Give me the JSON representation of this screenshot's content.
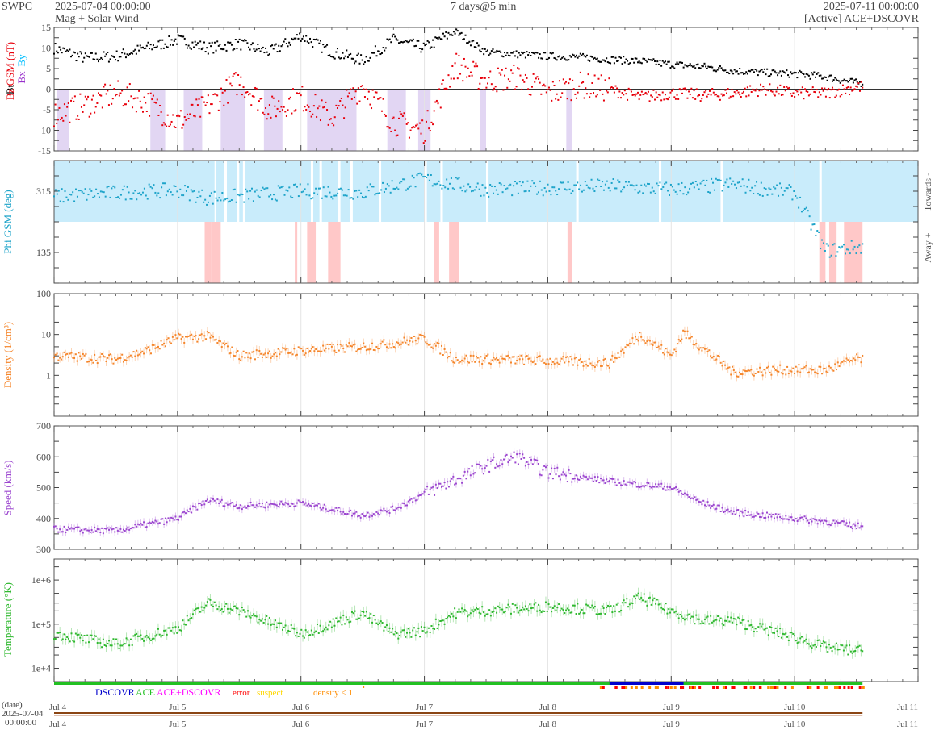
{
  "header": {
    "agency": "SWPC",
    "start_time": "2025-07-04 00:00:00",
    "subtitle": "Mag + Solar Wind",
    "span": "7 days@5 min",
    "end_time": "2025-07-11 00:00:00",
    "source": "[Active] ACE+DSCOVR"
  },
  "colors": {
    "bt": "#000000",
    "bz": "#e8000b",
    "bx": "#9932cc",
    "by": "#00bfff",
    "phi": "#1ca3c9",
    "towards_fill": "#c9ecfb",
    "away_fill": "#ffc8c8",
    "bz_fill": "#e2d6f3",
    "density": "#f5852a",
    "speed": "#9b45cf",
    "temperature": "#2eb82e",
    "dscovr": "#0000cd",
    "ace": "#22c022",
    "ace_dscovr": "#ff00ff",
    "error": "#ff0000",
    "suspect": "#ffd700",
    "density_lt1": "#ff8c00"
  },
  "side_labels": {
    "towards": "Towards -",
    "away": "Away +"
  },
  "legend": {
    "dscovr": "DSCOVR",
    "ace": "ACE",
    "ace_dscovr": "ACE+DSCOVR",
    "error": "error",
    "suspect": "suspect",
    "density_lt1": "density < 1"
  },
  "date_axis": {
    "label": "(date)",
    "date": "2025-07-04",
    "time": "00:00:00"
  },
  "chart_data": [
    {
      "type": "scatter",
      "panel": "mag",
      "ylabel_parts": [
        "Bt",
        "Bz GSM (nT)",
        "Bx",
        "By"
      ],
      "ylim": [
        -15,
        15
      ],
      "yticks": [
        -15,
        -10,
        -5,
        0,
        5,
        10,
        15
      ],
      "xlim_days": [
        0,
        7
      ],
      "x_categories": [
        "Jul 4",
        "Jul 5",
        "Jul 6",
        "Jul 7",
        "Jul 8",
        "Jul 9",
        "Jul 10",
        "Jul 11"
      ],
      "grid": true,
      "series": [
        {
          "name": "Bt",
          "x": [
            0,
            0.25,
            0.5,
            0.75,
            1,
            1.25,
            1.5,
            1.75,
            2,
            2.25,
            2.5,
            2.75,
            3,
            3.25,
            3.5,
            3.75,
            4,
            4.25,
            4.5,
            4.75,
            5,
            5.25,
            5.5,
            5.75,
            6,
            6.25,
            6.5
          ],
          "values": [
            10,
            7.5,
            8,
            10,
            12,
            10,
            11,
            9,
            13,
            9,
            7,
            12,
            10,
            14,
            9,
            8.5,
            8,
            7.8,
            7.2,
            6.8,
            6,
            5.5,
            4.5,
            4,
            3.7,
            3,
            1.5
          ]
        },
        {
          "name": "Bz GSM (nT)",
          "x": [
            0,
            0.25,
            0.5,
            0.75,
            1,
            1.25,
            1.5,
            1.75,
            2,
            2.25,
            2.5,
            2.75,
            3,
            3.25,
            3.5,
            3.75,
            4,
            4.25,
            4.5,
            4.75,
            5,
            5.25,
            5.5,
            5.75,
            6,
            6.25,
            6.5
          ],
          "values": [
            -6,
            -4,
            -1,
            -3,
            -8,
            -4,
            2,
            -5,
            -2,
            -7,
            1,
            -8,
            -10,
            6,
            2,
            3,
            -1,
            1,
            0,
            -2,
            -1,
            -1.5,
            -1,
            0,
            -1,
            -1,
            0.5
          ]
        }
      ]
    },
    {
      "type": "scatter",
      "panel": "phi",
      "ylabel": "Phi GSM (deg)",
      "yticks": [
        135,
        315
      ],
      "ylim": [
        45,
        405
      ],
      "series": [
        {
          "name": "Phi GSM (deg)",
          "x": [
            0,
            0.5,
            1,
            1.25,
            1.5,
            2,
            2.5,
            3,
            3.5,
            4,
            4.5,
            5,
            5.5,
            6,
            6.25,
            6.5
          ],
          "values": [
            300,
            310,
            318,
            295,
            300,
            315,
            312,
            350,
            320,
            325,
            330,
            320,
            335,
            310,
            140,
            150
          ]
        }
      ]
    },
    {
      "type": "scatter",
      "panel": "density",
      "ylabel": "Density (1/cm³)",
      "scale": "log",
      "ylim": [
        0.1,
        100
      ],
      "yticks": [
        1,
        10,
        100
      ],
      "series": [
        {
          "name": "Density (1/cm³)",
          "x": [
            0,
            0.5,
            0.75,
            1,
            1.25,
            1.5,
            2,
            2.5,
            2.75,
            3,
            3.25,
            3.5,
            4,
            4.5,
            4.75,
            5,
            5.1,
            5.5,
            6,
            6.25,
            6.5
          ],
          "values": [
            3,
            2.5,
            4,
            8,
            9,
            3,
            4,
            5,
            6,
            8,
            2.5,
            2.5,
            2.3,
            2,
            10,
            3,
            11,
            1.2,
            1.4,
            1.3,
            2.5
          ]
        }
      ]
    },
    {
      "type": "scatter",
      "panel": "speed",
      "ylabel": "Speed (km/s)",
      "ylim": [
        300,
        700
      ],
      "yticks": [
        300,
        400,
        500,
        600,
        700
      ],
      "series": [
        {
          "name": "Speed (km/s)",
          "x": [
            0,
            0.5,
            1,
            1.25,
            1.5,
            2,
            2.5,
            2.75,
            3,
            3.25,
            3.5,
            3.75,
            4,
            4.5,
            5,
            5.25,
            5.5,
            6,
            6.25,
            6.5
          ],
          "values": [
            365,
            360,
            400,
            460,
            440,
            450,
            410,
            430,
            480,
            525,
            570,
            600,
            550,
            520,
            500,
            450,
            420,
            400,
            390,
            375
          ]
        }
      ]
    },
    {
      "type": "scatter",
      "panel": "temperature",
      "ylabel": "Temperature (°K)",
      "scale": "log",
      "ylim": [
        5000,
        3000000
      ],
      "yticks": [
        "1e+4",
        "1e+5",
        "1e+6"
      ],
      "series": [
        {
          "name": "Temperature (°K)",
          "x": [
            0,
            0.5,
            1,
            1.25,
            1.5,
            2,
            2.5,
            2.75,
            3,
            3.25,
            3.5,
            4,
            4.5,
            4.75,
            5,
            5.25,
            5.5,
            6,
            6.25,
            6.5
          ],
          "values": [
            60000,
            35000,
            80000,
            300000,
            200000,
            60000,
            180000,
            60000,
            70000,
            180000,
            200000,
            250000,
            200000,
            400000,
            200000,
            120000,
            120000,
            50000,
            30000,
            25000
          ]
        }
      ]
    }
  ]
}
